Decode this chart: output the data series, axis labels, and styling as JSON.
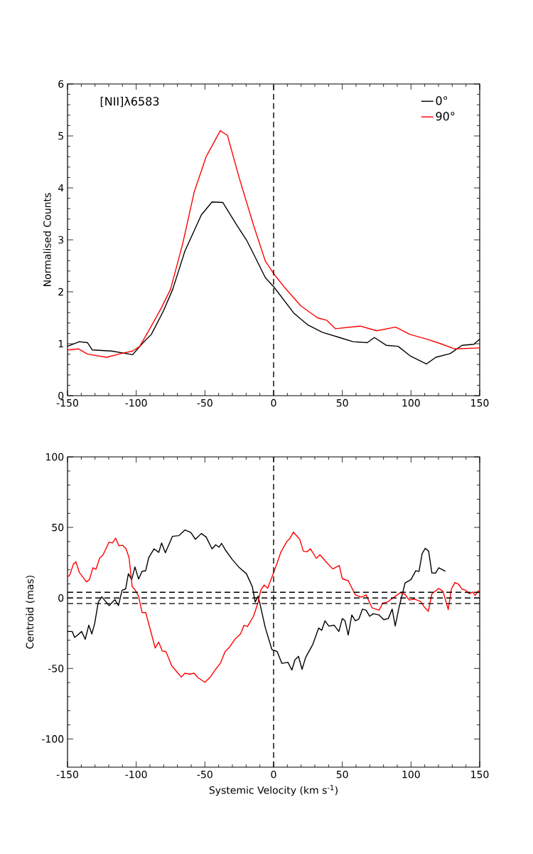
{
  "chart_data": [
    {
      "type": "line",
      "ylabel": "Normalised Counts",
      "annotations": [
        "[NII]λ6583"
      ],
      "xlim": [
        -150,
        150
      ],
      "ylim": [
        0,
        6
      ],
      "xticks": [
        -150,
        -100,
        -50,
        0,
        50,
        100,
        150
      ],
      "yticks": [
        0,
        1,
        2,
        3,
        4,
        5,
        6
      ],
      "legend": "top right",
      "line_style": "solid",
      "ref_lines": [
        {
          "axis": "x",
          "value": 0,
          "color": "#000000",
          "line_style": "dashed"
        }
      ],
      "series": [
        {
          "name": "0°",
          "color": "#000000",
          "x": [
            -150,
            -141.4,
            -135.4,
            -131.9,
            -118,
            -102.6,
            -95.7,
            -89,
            -80.2,
            -73.4,
            -64.6,
            -52.6,
            -44.8,
            -37,
            -26.7,
            -19.8,
            -14.6,
            -6,
            0,
            14.7,
            25,
            35.4,
            49.2,
            57.8,
            68.2,
            73.3,
            82,
            90.6,
            99.2,
            111.2,
            118.1,
            128.5,
            137.1,
            145.8,
            150
          ],
          "values": [
            0.95,
            1.04,
            1.02,
            0.88,
            0.86,
            0.79,
            1.0,
            1.18,
            1.63,
            2.05,
            2.78,
            3.48,
            3.73,
            3.72,
            3.28,
            3.0,
            2.73,
            2.27,
            2.1,
            1.59,
            1.36,
            1.22,
            1.11,
            1.04,
            1.02,
            1.12,
            0.97,
            0.95,
            0.77,
            0.61,
            0.74,
            0.81,
            0.97,
            0.99,
            1.09
          ]
        },
        {
          "name": "90°",
          "color": "#ff0000",
          "x": [
            -150,
            -141.9,
            -135.4,
            -121.5,
            -111.2,
            -102.6,
            -97.4,
            -90.5,
            -81.9,
            -75,
            -66.3,
            -57.8,
            -49.1,
            -38.8,
            -33.6,
            -25,
            -14.6,
            -6,
            0,
            7.8,
            19.8,
            31.9,
            38.8,
            44.9,
            63,
            75,
            88.8,
            99.2,
            111.2,
            121.6,
            131.9,
            150
          ],
          "values": [
            0.88,
            0.9,
            0.8,
            0.74,
            0.81,
            0.86,
            0.95,
            1.27,
            1.68,
            2.05,
            2.91,
            3.92,
            4.6,
            5.1,
            5.01,
            4.19,
            3.28,
            2.59,
            2.35,
            2.09,
            1.73,
            1.5,
            1.45,
            1.29,
            1.34,
            1.25,
            1.32,
            1.18,
            1.09,
            1.0,
            0.9,
            0.92
          ]
        }
      ]
    },
    {
      "type": "line",
      "xlabel": "Systemic Velocity (km s$^{-1}$)",
      "ylabel": "Centroid (mas)",
      "xlim": [
        -150,
        150
      ],
      "ylim": [
        -120,
        100
      ],
      "xticks": [
        -150,
        -100,
        -50,
        0,
        50,
        100,
        150
      ],
      "yticks": [
        -100,
        -50,
        0,
        50,
        100
      ],
      "line_style": "solid",
      "ref_lines": [
        {
          "axis": "x",
          "value": 0,
          "color": "#000000",
          "line_style": "dashed"
        },
        {
          "axis": "y",
          "value": 4,
          "color": "#000000",
          "line_style": "dashed"
        },
        {
          "axis": "y",
          "value": 0,
          "color": "#000000",
          "line_style": "dashed"
        },
        {
          "axis": "y",
          "value": -4,
          "color": "#000000",
          "line_style": "dashed"
        }
      ],
      "series": [
        {
          "color": "#000000",
          "x": [
            -150,
            -146.6,
            -144.8,
            -139.7,
            -137.1,
            -134.5,
            -132.3,
            -130.2,
            -127.6,
            -125,
            -119.8,
            -115.5,
            -112.9,
            -110.3,
            -107.7,
            -105.7,
            -103.3,
            -100.9,
            -98.3,
            -95.7,
            -93.1,
            -90.9,
            -87,
            -83.6,
            -81.5,
            -78.8,
            -73.6,
            -68.9,
            -64.6,
            -60.3,
            -56.9,
            -52.6,
            -49.1,
            -44.8,
            -42.2,
            -39.6,
            -37.9,
            -35.3,
            -30.1,
            -25,
            -19.8,
            -15.5,
            -13.4,
            -11.2,
            -6,
            -1.2,
            2.6,
            6,
            10.4,
            13.3,
            15.5,
            18.1,
            20.7,
            23.3,
            28.5,
            32.8,
            35,
            37.4,
            40.2,
            44,
            47.5,
            50,
            52,
            54.3,
            56.9,
            59.5,
            62,
            64.7,
            67.3,
            69.9,
            72.5,
            76.8,
            80.2,
            83.5,
            86.3,
            88.5,
            91.4,
            95.7,
            100,
            103.5,
            105.8,
            108.1,
            110.4,
            112.8,
            115.2,
            117.8,
            120.2,
            125
          ],
          "values": [
            -23.8,
            -23.8,
            -28,
            -23.8,
            -29.3,
            -19.3,
            -25.5,
            -18,
            -2.9,
            0.8,
            -5.4,
            -1.2,
            -5.4,
            5.5,
            6.4,
            17.2,
            13,
            22,
            13.4,
            18.9,
            19.3,
            28.6,
            34.8,
            32.3,
            39,
            32,
            43.7,
            44.2,
            48.2,
            46.5,
            41.6,
            45.7,
            43.2,
            34.8,
            37.7,
            36,
            38.7,
            34.3,
            27.3,
            21.5,
            17.2,
            8,
            -2.9,
            1.3,
            -21.3,
            -36.7,
            -38,
            -46.4,
            -45.6,
            -51.1,
            -43.9,
            -41.4,
            -50.6,
            -42.2,
            -33,
            -21.3,
            -23,
            -16.2,
            -20,
            -19.3,
            -23.8,
            -14.6,
            -16.2,
            -26.3,
            -12.1,
            -16.2,
            -15,
            -7.9,
            -8.7,
            -13,
            -11.2,
            -12.1,
            -15.4,
            -14.6,
            -7.9,
            -19.9,
            -6.2,
            10.6,
            13,
            19.3,
            18.7,
            31.5,
            35.2,
            33.2,
            17.7,
            17.6,
            21.4,
            18.9
          ]
        },
        {
          "color": "#ff0000",
          "x": [
            -150,
            -148.3,
            -145.7,
            -143.9,
            -141.4,
            -136.2,
            -134,
            -131.5,
            -129.3,
            -126.7,
            -124.1,
            -119.8,
            -117.2,
            -115,
            -112.6,
            -110,
            -107.4,
            -105.2,
            -102.9,
            -100.9,
            -98.3,
            -95.7,
            -93.1,
            -89.6,
            -86.2,
            -83.6,
            -81,
            -78.4,
            -74.1,
            -69.8,
            -67.2,
            -64.6,
            -61.2,
            -57.8,
            -55.2,
            -50,
            -45.7,
            -42.2,
            -38.8,
            -35.3,
            -31.9,
            -28.4,
            -24.1,
            -21.5,
            -19,
            -14.6,
            -11.2,
            -9.4,
            -6.9,
            -4.3,
            -0.9,
            2.6,
            5.2,
            9.5,
            12,
            14.4,
            19,
            21.6,
            24.2,
            26.8,
            31.1,
            33.7,
            38.9,
            43.1,
            47.8,
            50,
            54.3,
            59.5,
            63.8,
            67.3,
            71.6,
            76.8,
            79.4,
            82.8,
            88,
            92.3,
            95.7,
            98.7,
            102.6,
            106.9,
            109.5,
            112.6,
            115.2,
            120.2,
            123.3,
            127.1,
            129.4,
            132,
            134.6,
            137.1,
            139.7,
            142.3,
            144.9,
            146.6,
            149.2,
            150
          ],
          "values": [
            14.7,
            16.4,
            24,
            25.6,
            18.1,
            11.4,
            13,
            21.4,
            20.3,
            28.1,
            30.6,
            39.5,
            39,
            42.4,
            37,
            37.4,
            34.8,
            28.6,
            8,
            5.9,
            1.3,
            -10.4,
            -10.4,
            -23,
            -35.5,
            -31.3,
            -37.7,
            -38,
            -48.1,
            -53.1,
            -56.1,
            -53.4,
            -54,
            -53.4,
            -56.4,
            -59.8,
            -55.6,
            -50.6,
            -46.4,
            -38,
            -34.7,
            -29.6,
            -25.5,
            -19.4,
            -20.3,
            -12.9,
            -2.9,
            5.5,
            9.2,
            6.9,
            15.6,
            24.8,
            32.3,
            39.8,
            42.4,
            46.6,
            41.6,
            33.2,
            32.7,
            34.8,
            28.1,
            30.6,
            24.8,
            20.6,
            23,
            13.6,
            12.2,
            2.2,
            0.5,
            2.2,
            -7,
            -8.7,
            -3.7,
            -2.9,
            0.8,
            3.8,
            2.5,
            -1.5,
            -0.8,
            -2.5,
            -6.2,
            -9.5,
            3,
            6.7,
            4.7,
            -8.2,
            6.3,
            10.9,
            9.7,
            6.3,
            5.5,
            3,
            4.2,
            1.8,
            5,
            4
          ]
        }
      ]
    }
  ]
}
